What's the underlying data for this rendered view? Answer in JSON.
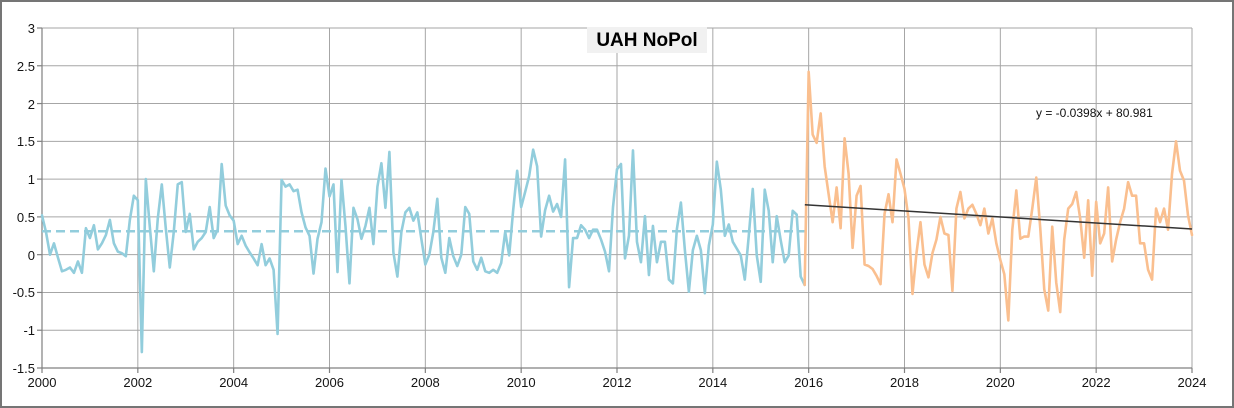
{
  "title": "UAH NoPol",
  "equation_label": "y = -0.0398x + 80.981",
  "colors": {
    "series_pre2016": "#92CDDC",
    "series_post2016": "#FABF8F",
    "trend_pre2016": "#92CDDC",
    "trend_post2016": "#333333",
    "gridline": "#A6A6A6",
    "axis": "#808080",
    "title_bg": "#F1F1F1",
    "text": "#141414",
    "frame_border": "#757575"
  },
  "chart_data": {
    "type": "line",
    "title": "UAH NoPol",
    "xlabel": "",
    "ylabel": "",
    "xlim": [
      2000,
      2024
    ],
    "ylim": [
      -1.5,
      3
    ],
    "grid": true,
    "legend": "none",
    "x_ticks": [
      2000,
      2002,
      2004,
      2006,
      2008,
      2010,
      2012,
      2014,
      2016,
      2018,
      2020,
      2022,
      2024
    ],
    "x_tick_labels": [
      "2000",
      "2002",
      "2004",
      "2006",
      "2008",
      "2010",
      "2012",
      "2014",
      "2016",
      "2018",
      "2020",
      "2022",
      "2024"
    ],
    "y_ticks": [
      3,
      2.5,
      2,
      1.5,
      1,
      0.5,
      0,
      -0.5,
      -1,
      -1.5
    ],
    "y_tick_labels": [
      "3",
      "2.5",
      "2",
      "1.5",
      "1",
      "0.5",
      "0",
      "-0.5",
      "-1",
      "-1.5"
    ],
    "series": [
      {
        "name": "monthly-anomaly-2000-2015",
        "color_key": "series_pre2016",
        "start_year": 2000,
        "start_month": 1,
        "values": [
          0.52,
          0.3,
          0.0,
          0.15,
          -0.04,
          -0.22,
          -0.2,
          -0.17,
          -0.24,
          -0.09,
          -0.24,
          0.35,
          0.22,
          0.39,
          0.07,
          0.15,
          0.26,
          0.46,
          0.15,
          0.04,
          0.02,
          -0.02,
          0.46,
          0.78,
          0.72,
          -1.29,
          1.0,
          0.37,
          -0.22,
          0.48,
          0.93,
          0.35,
          -0.17,
          0.3,
          0.93,
          0.96,
          0.3,
          0.54,
          0.07,
          0.17,
          0.22,
          0.3,
          0.63,
          0.22,
          0.33,
          1.2,
          0.65,
          0.52,
          0.45,
          0.14,
          0.25,
          0.12,
          0.03,
          -0.05,
          -0.14,
          0.14,
          -0.14,
          -0.05,
          -0.2,
          -1.05,
          0.99,
          0.9,
          0.93,
          0.84,
          0.86,
          0.56,
          0.36,
          0.25,
          -0.25,
          0.21,
          0.43,
          1.14,
          0.77,
          0.93,
          -0.23,
          0.99,
          0.38,
          -0.38,
          0.62,
          0.47,
          0.21,
          0.38,
          0.62,
          0.14,
          0.9,
          1.21,
          0.62,
          1.36,
          0.03,
          -0.29,
          0.3,
          0.56,
          0.62,
          0.45,
          0.56,
          0.21,
          -0.13,
          0.0,
          0.3,
          0.74,
          -0.04,
          -0.24,
          0.22,
          -0.02,
          -0.15,
          0.0,
          0.63,
          0.54,
          -0.09,
          -0.2,
          -0.04,
          -0.22,
          -0.24,
          -0.2,
          -0.24,
          -0.11,
          0.3,
          -0.01,
          0.59,
          1.11,
          0.63,
          0.83,
          1.04,
          1.39,
          1.17,
          0.24,
          0.59,
          0.78,
          0.57,
          0.67,
          0.5,
          1.26,
          -0.43,
          0.22,
          0.22,
          0.39,
          0.33,
          0.22,
          0.33,
          0.33,
          0.2,
          0.04,
          -0.22,
          0.63,
          1.13,
          1.2,
          -0.05,
          0.25,
          1.38,
          0.17,
          -0.1,
          0.51,
          -0.27,
          0.38,
          -0.1,
          0.17,
          0.17,
          -0.33,
          -0.38,
          0.34,
          0.69,
          0.06,
          -0.49,
          0.06,
          0.25,
          0.06,
          -0.51,
          0.12,
          0.4,
          1.23,
          0.86,
          0.25,
          0.4,
          0.17,
          0.08,
          -0.01,
          -0.33,
          0.25,
          0.87,
          -0.01,
          -0.36,
          0.86,
          0.58,
          -0.1,
          0.51,
          0.19,
          -0.1,
          -0.01,
          0.58,
          0.53,
          -0.29,
          -0.4
        ]
      },
      {
        "name": "monthly-anomaly-2016-2024",
        "color_key": "series_post2016",
        "start_year": 2015,
        "start_month": 12,
        "values": [
          -0.4,
          2.42,
          1.59,
          1.48,
          1.87,
          1.17,
          0.8,
          0.43,
          0.89,
          0.35,
          1.54,
          1.07,
          0.09,
          0.78,
          0.91,
          -0.13,
          -0.15,
          -0.19,
          -0.28,
          -0.39,
          0.54,
          0.8,
          0.43,
          1.26,
          1.07,
          0.87,
          0.48,
          -0.52,
          0.02,
          0.43,
          -0.13,
          -0.3,
          0.02,
          0.2,
          0.5,
          0.28,
          0.26,
          -0.48,
          0.61,
          0.83,
          0.48,
          0.61,
          0.66,
          0.54,
          0.39,
          0.61,
          0.28,
          0.48,
          0.15,
          -0.07,
          -0.26,
          -0.87,
          0.33,
          0.85,
          0.21,
          0.24,
          0.24,
          0.61,
          1.02,
          0.35,
          -0.46,
          -0.74,
          0.37,
          -0.37,
          -0.76,
          0.2,
          0.61,
          0.67,
          0.83,
          0.48,
          -0.04,
          0.72,
          -0.28,
          0.7,
          0.15,
          0.28,
          0.89,
          -0.09,
          0.2,
          0.43,
          0.61,
          0.96,
          0.78,
          0.78,
          0.15,
          0.15,
          -0.2,
          -0.33,
          0.61,
          0.43,
          0.61,
          0.33,
          1.07,
          1.5,
          1.11,
          0.98,
          0.52,
          0.26
        ]
      }
    ],
    "trendlines": [
      {
        "name": "pre-2016-mean-line",
        "style": "dashed",
        "color_key": "trend_pre2016",
        "points": [
          [
            2000.0,
            0.31
          ],
          [
            2015.92,
            0.31
          ]
        ]
      },
      {
        "name": "post-2016-linear-fit",
        "style": "solid",
        "color_key": "trend_post2016",
        "points": [
          [
            2015.92,
            0.66
          ],
          [
            2024.0,
            0.34
          ]
        ],
        "equation": "y = -0.0398x + 80.981"
      }
    ]
  }
}
